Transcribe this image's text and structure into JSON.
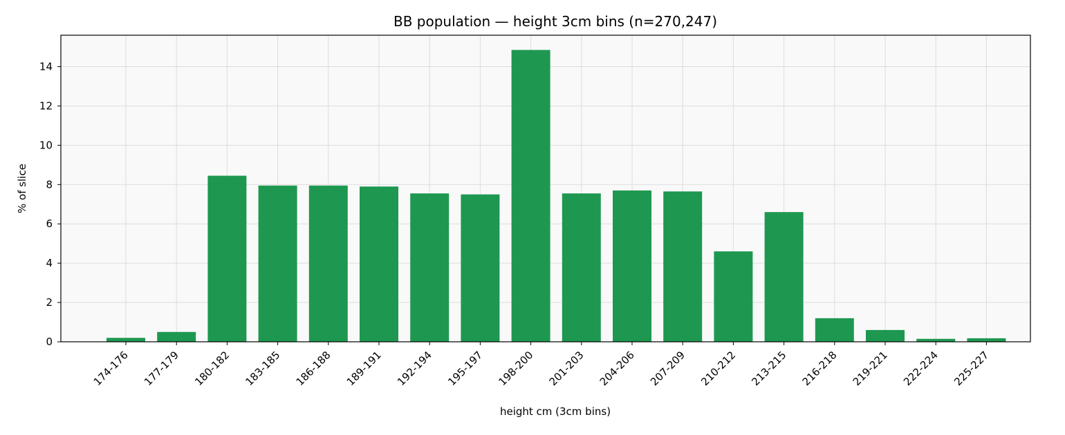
{
  "chart_data": {
    "type": "bar",
    "title": "BB population — height 3cm bins (n=270,247)",
    "xlabel": "height cm (3cm bins)",
    "ylabel": "% of slice",
    "categories": [
      "174-176",
      "177-179",
      "180-182",
      "183-185",
      "186-188",
      "189-191",
      "192-194",
      "195-197",
      "198-200",
      "201-203",
      "204-206",
      "207-209",
      "210-212",
      "213-215",
      "216-218",
      "219-221",
      "222-224",
      "225-227"
    ],
    "values": [
      0.2,
      0.5,
      8.45,
      7.95,
      7.95,
      7.9,
      7.55,
      7.5,
      14.85,
      7.55,
      7.7,
      7.65,
      4.6,
      6.6,
      1.2,
      0.6,
      0.15,
      0.18
    ],
    "ylim": [
      0,
      15.6
    ],
    "yticks": [
      "0",
      "2",
      "4",
      "6",
      "8",
      "10",
      "12",
      "14"
    ],
    "grid": true,
    "colors": {
      "bar": "#1e9850",
      "plot_bg": "#f9f9f9",
      "grid": "#dddddd"
    }
  }
}
